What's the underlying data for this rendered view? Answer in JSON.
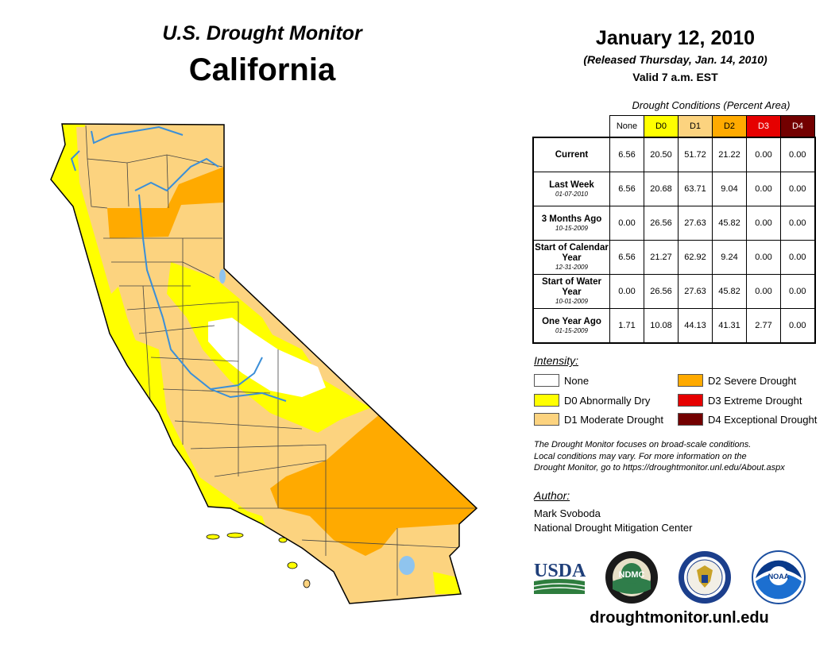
{
  "header": {
    "title": "U.S. Drought Monitor",
    "region": "California",
    "date": "January 12, 2010",
    "released": "(Released Thursday, Jan. 14, 2010)",
    "valid": "Valid 7 a.m. EST"
  },
  "conditions": {
    "caption": "Drought Conditions (Percent Area)",
    "columns": [
      "None",
      "D0",
      "D1",
      "D2",
      "D3",
      "D4"
    ],
    "column_colors": [
      "#ffffff",
      "#ffff00",
      "#fcd37f",
      "#ffaa00",
      "#e60000",
      "#730000"
    ],
    "rows": [
      {
        "label": "Current",
        "date": "",
        "values": [
          "6.56",
          "20.50",
          "51.72",
          "21.22",
          "0.00",
          "0.00"
        ]
      },
      {
        "label": "Last Week",
        "date": "01-07-2010",
        "values": [
          "6.56",
          "20.68",
          "63.71",
          "9.04",
          "0.00",
          "0.00"
        ]
      },
      {
        "label": "3 Months Ago",
        "date": "10-15-2009",
        "values": [
          "0.00",
          "26.56",
          "27.63",
          "45.82",
          "0.00",
          "0.00"
        ]
      },
      {
        "label": "Start of Calendar Year",
        "date": "12-31-2009",
        "values": [
          "6.56",
          "21.27",
          "62.92",
          "9.24",
          "0.00",
          "0.00"
        ]
      },
      {
        "label": "Start of Water Year",
        "date": "10-01-2009",
        "values": [
          "0.00",
          "26.56",
          "27.63",
          "45.82",
          "0.00",
          "0.00"
        ]
      },
      {
        "label": "One Year Ago",
        "date": "01-15-2009",
        "values": [
          "1.71",
          "10.08",
          "44.13",
          "41.31",
          "2.77",
          "0.00"
        ]
      }
    ]
  },
  "legend": {
    "title": "Intensity:",
    "items": [
      {
        "label": "None",
        "color": "#ffffff"
      },
      {
        "label": "D0 Abnormally Dry",
        "color": "#ffff00"
      },
      {
        "label": "D1 Moderate Drought",
        "color": "#fcd37f"
      },
      {
        "label": "D2 Severe Drought",
        "color": "#ffaa00"
      },
      {
        "label": "D3 Extreme Drought",
        "color": "#e60000"
      },
      {
        "label": "D4 Exceptional Drought",
        "color": "#730000"
      }
    ]
  },
  "note": {
    "line1": "The Drought Monitor focuses on broad-scale conditions.",
    "line2": "Local conditions may vary. For more information on the",
    "line3": "Drought Monitor, go to https://droughtmonitor.unl.edu/About.aspx"
  },
  "author": {
    "title": "Author:",
    "name": "Mark Svoboda",
    "org": "National Drought Mitigation Center"
  },
  "logos": {
    "usda": "USDA",
    "ndmc": "NDMC",
    "noaa": "NOAA"
  },
  "website": "droughtmonitor.unl.edu"
}
